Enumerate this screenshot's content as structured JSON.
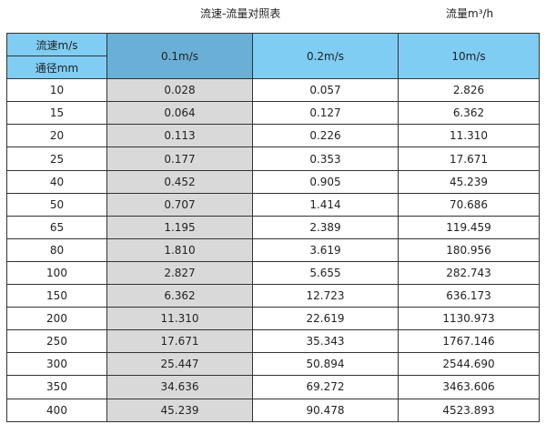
{
  "title": "流速-流量对照表",
  "unit_note": "流量m³/h",
  "header": {
    "velocity_label": "流速m/s",
    "diameter_label": "通径mm",
    "columns": [
      "0.1m/s",
      "0.2m/s",
      "10m/s"
    ]
  },
  "colors": {
    "header": "#7fcdf3",
    "header_highlight": "#6aafd5",
    "highlight_column": "#d9d9d9"
  },
  "rows": [
    [
      "10",
      "0.028",
      "0.057",
      "2.826"
    ],
    [
      "15",
      "0.064",
      "0.127",
      "6.362"
    ],
    [
      "20",
      "0.113",
      "0.226",
      "11.310"
    ],
    [
      "25",
      "0.177",
      "0.353",
      "17.671"
    ],
    [
      "40",
      "0.452",
      "0.905",
      "45.239"
    ],
    [
      "50",
      "0.707",
      "1.414",
      "70.686"
    ],
    [
      "65",
      "1.195",
      "2.389",
      "119.459"
    ],
    [
      "80",
      "1.810",
      "3.619",
      "180.956"
    ],
    [
      "100",
      "2.827",
      "5.655",
      "282.743"
    ],
    [
      "150",
      "6.362",
      "12.723",
      "636.173"
    ],
    [
      "200",
      "11.310",
      "22.619",
      "1130.973"
    ],
    [
      "250",
      "17.671",
      "35.343",
      "1767.146"
    ],
    [
      "300",
      "25.447",
      "50.894",
      "2544.690"
    ],
    [
      "350",
      "34.636",
      "69.272",
      "3463.606"
    ],
    [
      "400",
      "45.239",
      "90.478",
      "4523.893"
    ]
  ]
}
